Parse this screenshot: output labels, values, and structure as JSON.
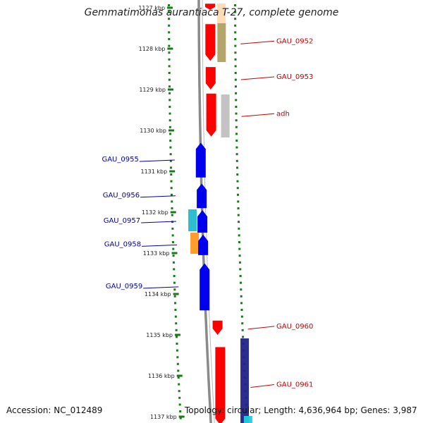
{
  "title": "Gemmatimonas aurantiaca T-27, complete genome",
  "accession": "Accession: NC_012489",
  "summary": "Topology: circular; Length: 4,636,964 bp; Genes: 3,987",
  "colors": {
    "forward_label": "#cc0000",
    "reverse_label": "#0000aa",
    "forward_gene": "#ff0000",
    "reverse_gene": "#0000ee",
    "tick": "#1a7a1a",
    "backbone": "#8a8a8a"
  },
  "ticks": [
    {
      "label": "1127 kbp",
      "kbp": 1127
    },
    {
      "label": "1128 kbp",
      "kbp": 1128
    },
    {
      "label": "1129 kbp",
      "kbp": 1129
    },
    {
      "label": "1130 kbp",
      "kbp": 1130
    },
    {
      "label": "1131 kbp",
      "kbp": 1131
    },
    {
      "label": "1132 kbp",
      "kbp": 1132
    },
    {
      "label": "1133 kbp",
      "kbp": 1133
    },
    {
      "label": "1134 kbp",
      "kbp": 1134
    },
    {
      "label": "1135 kbp",
      "kbp": 1135
    },
    {
      "label": "1136 kbp",
      "kbp": 1136
    },
    {
      "label": "1137 kbp",
      "kbp": 1137
    }
  ],
  "genes": [
    {
      "name": "",
      "strand": "forward",
      "start": 1126.9,
      "end": 1127.05
    },
    {
      "name": "GAU_0952",
      "strand": "forward",
      "start": 1127.4,
      "end": 1128.3
    },
    {
      "name": "GAU_0953",
      "strand": "forward",
      "start": 1128.45,
      "end": 1129.0
    },
    {
      "name": "adh",
      "strand": "forward",
      "start": 1129.1,
      "end": 1130.15
    },
    {
      "name": "GAU_0955",
      "strand": "reverse",
      "start": 1130.3,
      "end": 1131.15
    },
    {
      "name": "GAU_0956",
      "strand": "reverse",
      "start": 1131.3,
      "end": 1131.9
    },
    {
      "name": "GAU_0957",
      "strand": "reverse",
      "start": 1131.95,
      "end": 1132.5
    },
    {
      "name": "GAU_0958",
      "strand": "reverse",
      "start": 1132.55,
      "end": 1133.05
    },
    {
      "name": "GAU_0959",
      "strand": "reverse",
      "start": 1133.25,
      "end": 1134.4
    },
    {
      "name": "GAU_0960",
      "strand": "forward",
      "start": 1134.65,
      "end": 1135.0
    },
    {
      "name": "GAU_0961",
      "strand": "forward",
      "start": 1135.3,
      "end": 1137.2
    }
  ]
}
